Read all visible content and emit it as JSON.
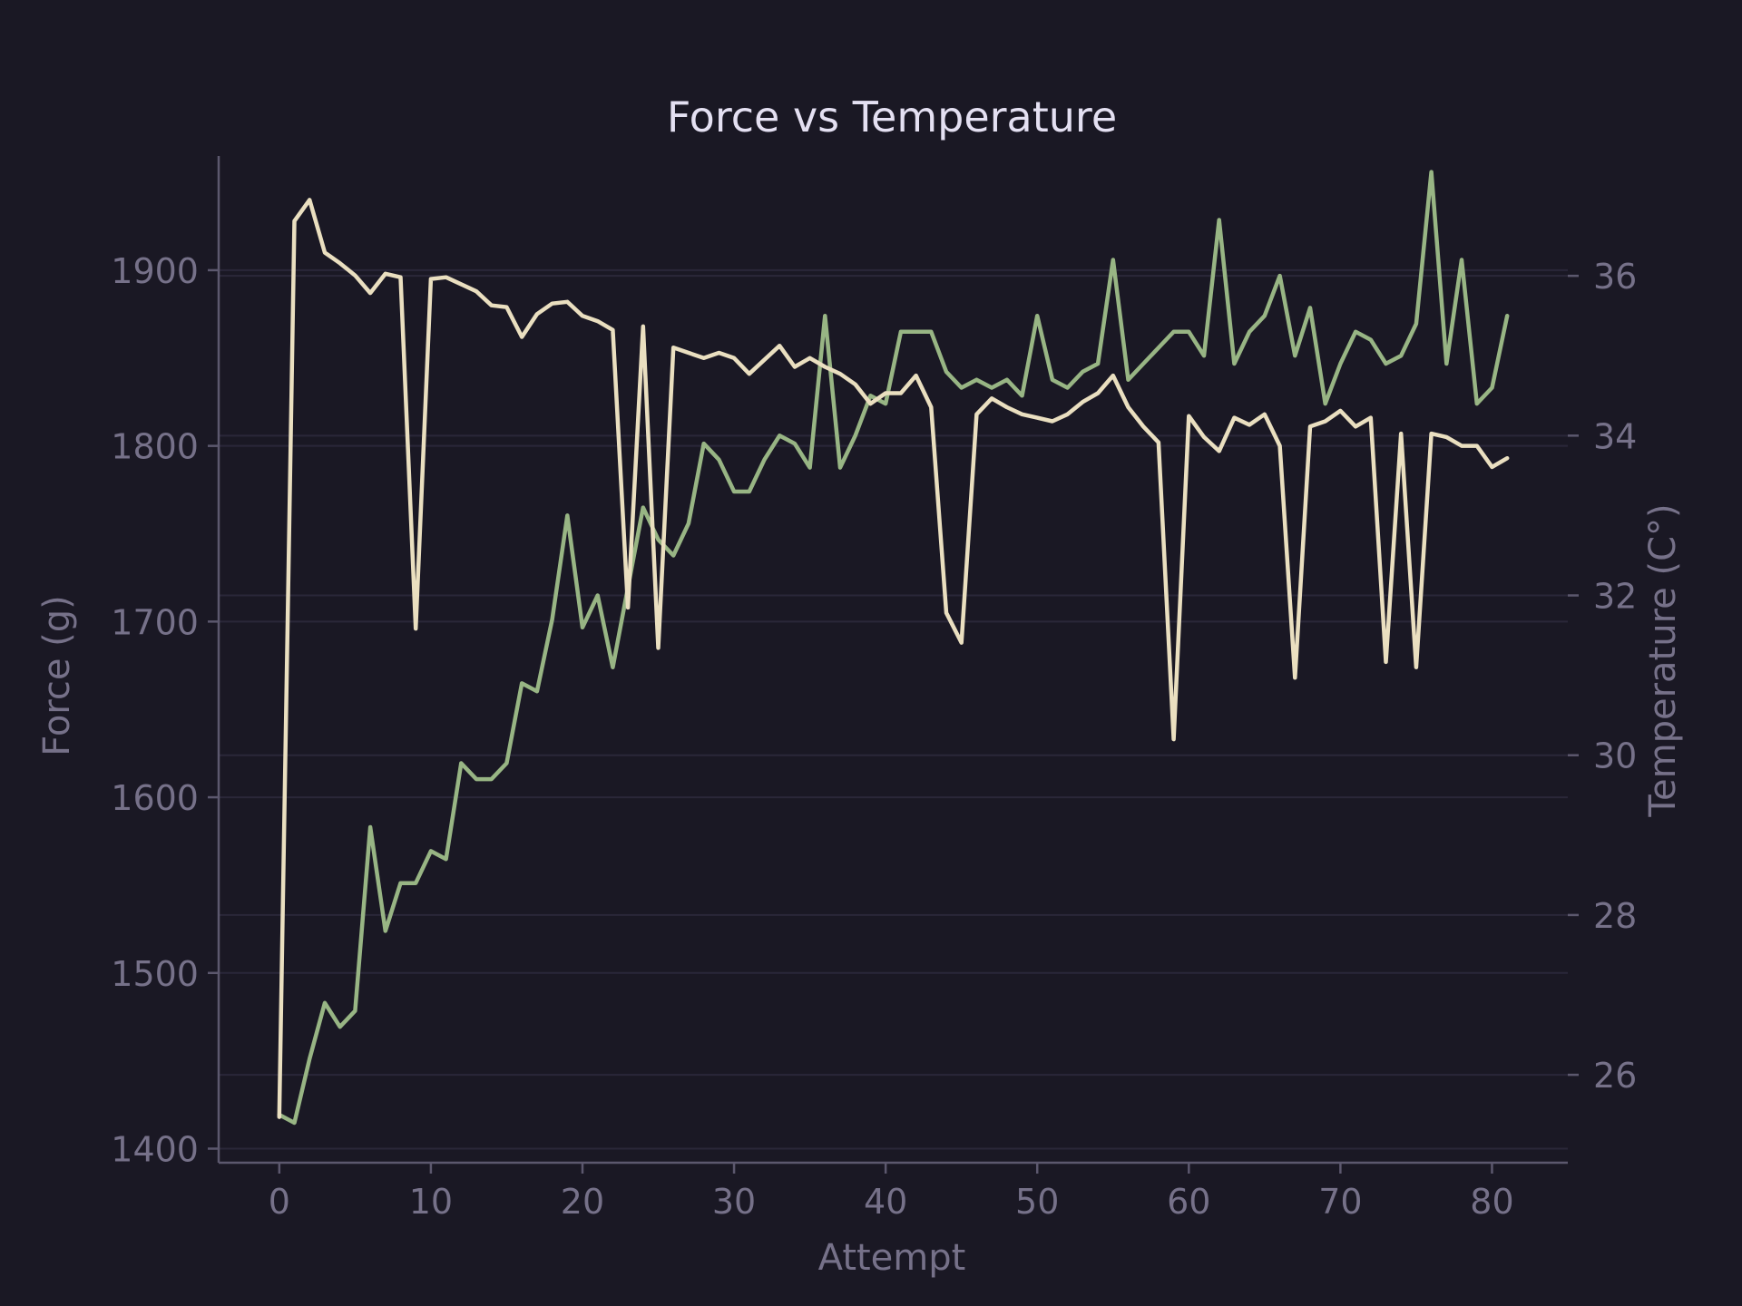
{
  "chart_data": {
    "type": "line",
    "title": "Force vs Temperature",
    "xlabel": "Attempt",
    "ylabel": "Force (g)",
    "y2label": "Temperature (C°)",
    "xlim": [
      -4,
      85
    ],
    "ylim": [
      1392,
      1965
    ],
    "y2lim": [
      24.9,
      37.5
    ],
    "xticks": [
      0,
      10,
      20,
      30,
      40,
      50,
      60,
      70,
      80
    ],
    "yticks": [
      1400,
      1500,
      1600,
      1700,
      1800,
      1900
    ],
    "y2ticks": [
      26,
      28,
      30,
      32,
      34,
      36
    ],
    "grid": true,
    "colors": {
      "background": "#1a1824",
      "force": "#eadfc0",
      "temperature": "#98b584"
    },
    "x": [
      0,
      1,
      2,
      3,
      4,
      5,
      6,
      7,
      8,
      9,
      10,
      11,
      12,
      13,
      14,
      15,
      16,
      17,
      18,
      19,
      20,
      21,
      22,
      23,
      24,
      25,
      26,
      27,
      28,
      29,
      30,
      31,
      32,
      33,
      34,
      35,
      36,
      37,
      38,
      39,
      40,
      41,
      42,
      43,
      44,
      45,
      46,
      47,
      48,
      49,
      50,
      51,
      52,
      53,
      54,
      55,
      56,
      57,
      58,
      59,
      60,
      61,
      62,
      63,
      64,
      65,
      66,
      67,
      68,
      69,
      70,
      71,
      72,
      73,
      74,
      75,
      76,
      77,
      78,
      79,
      80,
      81
    ],
    "series": [
      {
        "name": "",
        "axis": "left",
        "values": [
          1418,
          1928,
          1940,
          1910,
          1904,
          1897,
          1887,
          1898,
          1896,
          1696,
          1895,
          1896,
          1892,
          1888,
          1880,
          1879,
          1862,
          1875,
          1881,
          1882,
          1874,
          1871,
          1866,
          1708,
          1868,
          1685,
          1856,
          1853,
          1850,
          1853,
          1850,
          1841,
          1849,
          1857,
          1845,
          1850,
          1845,
          1841,
          1835,
          1824,
          1830,
          1830,
          1840,
          1822,
          1705,
          1688,
          1818,
          1827,
          1822,
          1818,
          1816,
          1814,
          1818,
          1825,
          1830,
          1840,
          1822,
          1811,
          1802,
          1633,
          1817,
          1805,
          1797,
          1816,
          1812,
          1818,
          1800,
          1668,
          1811,
          1814,
          1820,
          1811,
          1816,
          1677,
          1807,
          1674,
          1807,
          1805,
          1800,
          1800,
          1788,
          1793
        ]
      },
      {
        "name": "",
        "axis": "right",
        "values": [
          25.5,
          25.4,
          26.2,
          26.9,
          26.6,
          26.8,
          29.1,
          27.8,
          28.4,
          28.4,
          28.8,
          28.7,
          29.9,
          29.7,
          29.7,
          29.9,
          30.9,
          30.8,
          31.7,
          33.0,
          31.6,
          32.0,
          31.1,
          32.1,
          33.1,
          32.7,
          32.5,
          32.9,
          33.9,
          33.7,
          33.3,
          33.3,
          33.7,
          34.0,
          33.9,
          33.6,
          35.5,
          33.6,
          34.0,
          34.5,
          34.4,
          35.3,
          35.3,
          35.3,
          34.8,
          34.6,
          34.7,
          34.6,
          34.7,
          34.5,
          35.5,
          34.7,
          34.6,
          34.8,
          34.9,
          36.2,
          34.7,
          34.9,
          35.1,
          35.3,
          35.3,
          35.0,
          36.7,
          34.9,
          35.3,
          35.5,
          36.0,
          35.0,
          35.6,
          34.4,
          34.9,
          35.3,
          35.2,
          34.9,
          35.0,
          35.4,
          37.3,
          34.9,
          36.2,
          34.4,
          34.6,
          35.5
        ]
      }
    ]
  }
}
